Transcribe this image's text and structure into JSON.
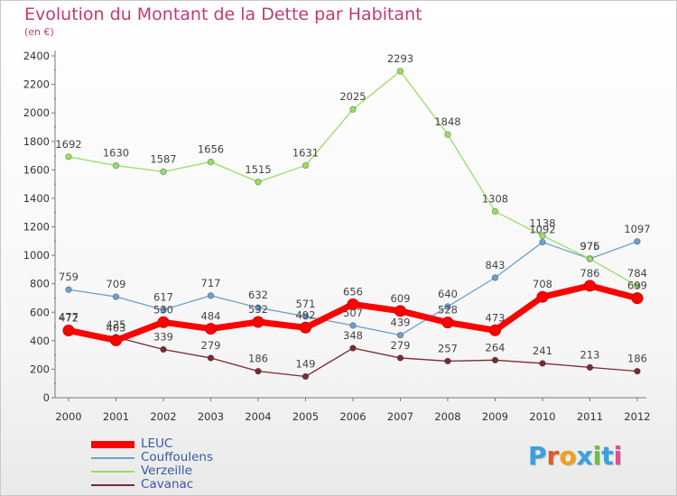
{
  "chart_data": {
    "type": "line",
    "title": "Evolution du Montant de la Dette par Habitant",
    "subtitle": "(en €)",
    "xlabel": "",
    "ylabel": "",
    "x": [
      "2000",
      "2001",
      "2002",
      "2003",
      "2004",
      "2005",
      "2006",
      "2007",
      "2008",
      "2009",
      "2010",
      "2011",
      "2012"
    ],
    "ylim": [
      0,
      2400
    ],
    "yticks": [
      "0",
      "200",
      "400",
      "600",
      "800",
      "1000",
      "1200",
      "1400",
      "1600",
      "1800",
      "2000",
      "2200",
      "2400"
    ],
    "grid": false,
    "legend_position": "bottom-left",
    "series": [
      {
        "name": "LEUC",
        "color": "#ff0000",
        "values": [
          472,
          403,
          530,
          484,
          532,
          492,
          656,
          609,
          528,
          473,
          708,
          786,
          699
        ]
      },
      {
        "name": "Couffoulens",
        "color": "#6f9fcf",
        "values": [
          759,
          709,
          617,
          717,
          632,
          571,
          507,
          439,
          640,
          843,
          1092,
          976,
          1097
        ]
      },
      {
        "name": "Verzeille",
        "color": "#99dd66",
        "values": [
          1692,
          1630,
          1587,
          1656,
          1515,
          1631,
          2025,
          2293,
          1848,
          1308,
          1138,
          975,
          784
        ]
      },
      {
        "name": "Cavanac",
        "color": "#7a2a33",
        "values": [
          477,
          425,
          339,
          279,
          186,
          149,
          348,
          279,
          257,
          264,
          241,
          213,
          186
        ]
      }
    ]
  },
  "brand": {
    "letters": [
      {
        "char": "P",
        "color": "#3aa0e0"
      },
      {
        "char": "r",
        "color": "#e05a2a"
      },
      {
        "char": "o",
        "color": "#f0a020"
      },
      {
        "char": "x",
        "color": "#3aa0e0"
      },
      {
        "char": "i",
        "color": "#6cc040"
      },
      {
        "char": "t",
        "color": "#3aa0e0"
      },
      {
        "char": "i",
        "color": "#e84a90"
      }
    ]
  }
}
